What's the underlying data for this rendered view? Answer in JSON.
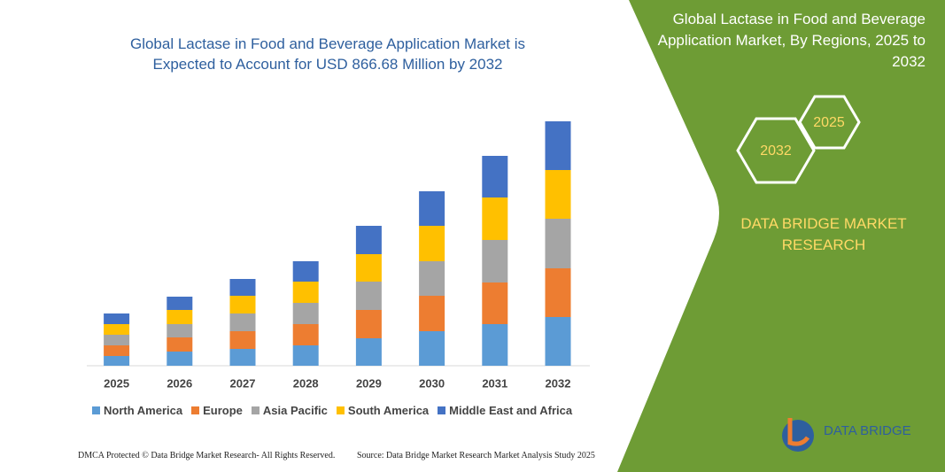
{
  "chart_data": {
    "type": "bar",
    "stacked": true,
    "title": "Global Lactase in Food and Beverage Application Market is Expected to Account for USD 866.68 Million by 2032",
    "categories": [
      "2025",
      "2026",
      "2027",
      "2028",
      "2029",
      "2030",
      "2031",
      "2032"
    ],
    "series": [
      {
        "name": "North America",
        "color": "#5b9bd5",
        "values": [
          11,
          16,
          19,
          23,
          31,
          39,
          47,
          55
        ]
      },
      {
        "name": "Europe",
        "color": "#ed7d31",
        "values": [
          12,
          16,
          20,
          24,
          32,
          40,
          47,
          55
        ]
      },
      {
        "name": "Asia Pacific",
        "color": "#a5a5a5",
        "values": [
          12,
          15,
          20,
          24,
          32,
          39,
          48,
          56
        ]
      },
      {
        "name": "South America",
        "color": "#ffc000",
        "values": [
          12,
          16,
          20,
          24,
          31,
          40,
          48,
          55
        ]
      },
      {
        "name": "Middle East and Africa",
        "color": "#4472c4",
        "values": [
          12,
          15,
          19,
          23,
          32,
          39,
          47,
          55
        ]
      }
    ],
    "ylim": [
      0,
      300
    ]
  },
  "panel": {
    "title": "Global Lactase in Food and Beverage Application Market, By Regions, 2025 to 2032",
    "hex_start": "2025",
    "hex_end": "2032",
    "brand": "DATA BRIDGE MARKET RESEARCH",
    "logo": "DATA BRIDGE"
  },
  "footer": {
    "left": "DMCA Protected © Data Bridge Market Research- All Rights Reserved.",
    "right": "Source: Data Bridge Market Research Market Analysis Study 2025"
  }
}
